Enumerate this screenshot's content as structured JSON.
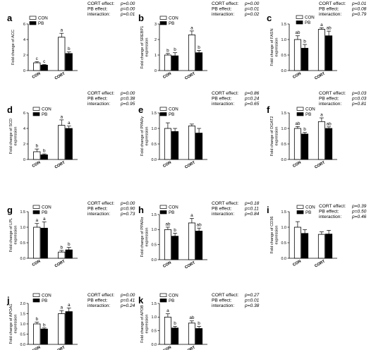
{
  "legend": {
    "con_label": "CON",
    "pb_label": "PB",
    "colors": {
      "con": "#ffffff",
      "pb": "#000000"
    }
  },
  "chart_data": [
    {
      "id": "a",
      "type": "bar",
      "ylabel": "Fold change of ACC",
      "ylim": [
        0,
        6
      ],
      "yticks": [
        0,
        2,
        4,
        6
      ],
      "categories": [
        "CON",
        "CORT"
      ],
      "series": [
        {
          "name": "CON",
          "values": [
            1.0,
            4.3
          ],
          "errors": [
            0.15,
            0.5
          ],
          "letters": [
            "c",
            "a"
          ]
        },
        {
          "name": "PB",
          "values": [
            0.7,
            2.2
          ],
          "errors": [
            0.08,
            0.2
          ],
          "letters": [
            "c",
            "b"
          ]
        }
      ],
      "stats": [
        {
          "label": "CORT effect:",
          "value": "p=0.00"
        },
        {
          "label": "PB effect:",
          "value": "p=0.00"
        },
        {
          "label": "interaction:",
          "value": "p=0.01"
        }
      ]
    },
    {
      "id": "b",
      "type": "bar",
      "ylabel": "Fold change of SREBP1 expression",
      "ylim": [
        0,
        3
      ],
      "yticks": [
        0,
        1,
        2,
        3
      ],
      "categories": [
        "CON",
        "CORT"
      ],
      "series": [
        {
          "name": "CON",
          "values": [
            1.0,
            2.3
          ],
          "errors": [
            0.1,
            0.25
          ],
          "letters": [
            "b",
            "a"
          ]
        },
        {
          "name": "PB",
          "values": [
            0.95,
            1.15
          ],
          "errors": [
            0.2,
            0.15
          ],
          "letters": [
            "b",
            "b"
          ]
        }
      ],
      "stats": [
        {
          "label": "CORT effect:",
          "value": "p=0.00"
        },
        {
          "label": "PB effect:",
          "value": "p=0.01"
        },
        {
          "label": "interaction:",
          "value": "p=0.02"
        }
      ]
    },
    {
      "id": "c",
      "type": "bar",
      "ylabel": "Fold change of FASN expression",
      "ylim": [
        0,
        1.5
      ],
      "yticks": [
        0.0,
        0.5,
        1.0,
        1.5
      ],
      "categories": [
        "CON",
        "CORT"
      ],
      "series": [
        {
          "name": "CON",
          "values": [
            1.0,
            1.33
          ],
          "errors": [
            0.12,
            0.05
          ],
          "letters": [
            "ab",
            "a"
          ]
        },
        {
          "name": "PB",
          "values": [
            0.72,
            1.12
          ],
          "errors": [
            0.12,
            0.15
          ],
          "letters": [
            "b",
            "ab"
          ]
        }
      ],
      "stats": [
        {
          "label": "CORT effect:",
          "value": "p=0.01"
        },
        {
          "label": "PB effect:",
          "value": "p=0.08"
        },
        {
          "label": "interaction:",
          "value": "p=0.79"
        }
      ]
    },
    {
      "id": "d",
      "type": "bar",
      "ylabel": "Fold change of SCD expression",
      "ylim": [
        0,
        6
      ],
      "yticks": [
        0,
        2,
        4,
        6
      ],
      "categories": [
        "CON",
        "CORT"
      ],
      "series": [
        {
          "name": "CON",
          "values": [
            1.0,
            4.4
          ],
          "errors": [
            0.35,
            0.7
          ],
          "letters": [
            "b",
            "a"
          ]
        },
        {
          "name": "PB",
          "values": [
            0.6,
            4.0
          ],
          "errors": [
            0.12,
            0.3
          ],
          "letters": [
            "b",
            "a"
          ]
        }
      ],
      "stats": [
        {
          "label": "CORT effect:",
          "value": "p=0.00"
        },
        {
          "label": "PB effect:",
          "value": "p=0.38"
        },
        {
          "label": "interaction:",
          "value": "p=0.95"
        }
      ]
    },
    {
      "id": "e",
      "type": "bar",
      "ylabel": "Fold change of PPARγ expression",
      "ylim": [
        0,
        1.5
      ],
      "yticks": [
        0.0,
        0.5,
        1.0,
        1.5
      ],
      "categories": [
        "CON",
        "CORT"
      ],
      "series": [
        {
          "name": "CON",
          "values": [
            1.0,
            1.08
          ],
          "errors": [
            0.18,
            0.06
          ],
          "letters": [
            "",
            ""
          ]
        },
        {
          "name": "PB",
          "values": [
            0.9,
            0.85
          ],
          "errors": [
            0.1,
            0.15
          ],
          "letters": [
            "",
            ""
          ]
        }
      ],
      "stats": [
        {
          "label": "CORT effect:",
          "value": "p=0.86"
        },
        {
          "label": "PB effect:",
          "value": "p=0.24"
        },
        {
          "label": "interaction:",
          "value": "p=0.65"
        }
      ]
    },
    {
      "id": "f",
      "type": "bar",
      "ylabel": "Fold change of DGAT2 expression",
      "ylim": [
        0,
        1.5
      ],
      "yticks": [
        0.0,
        0.5,
        1.0,
        1.5
      ],
      "categories": [
        "CON",
        "CORT"
      ],
      "series": [
        {
          "name": "CON",
          "values": [
            1.0,
            1.22
          ],
          "errors": [
            0.06,
            0.12
          ],
          "letters": [
            "ab",
            "a"
          ]
        },
        {
          "name": "PB",
          "values": [
            0.82,
            1.0
          ],
          "errors": [
            0.05,
            0.05
          ],
          "letters": [
            "b",
            "ab"
          ]
        }
      ],
      "stats": [
        {
          "label": "CORT effect:",
          "value": "p=0.03"
        },
        {
          "label": "PB effect:",
          "value": "p=0.03"
        },
        {
          "label": "interaction:",
          "value": "p=0.81"
        }
      ]
    },
    {
      "id": "g",
      "type": "bar",
      "ylabel": "Fold change of LPL expression",
      "ylim": [
        0,
        1.5
      ],
      "yticks": [
        0.0,
        0.5,
        1.0,
        1.5
      ],
      "categories": [
        "CON",
        "CORT"
      ],
      "series": [
        {
          "name": "CON",
          "values": [
            1.0,
            0.2
          ],
          "errors": [
            0.12,
            0.05
          ],
          "letters": [
            "a",
            "b"
          ]
        },
        {
          "name": "PB",
          "values": [
            0.97,
            0.27
          ],
          "errors": [
            0.2,
            0.08
          ],
          "letters": [
            "a",
            "b"
          ]
        }
      ],
      "stats": [
        {
          "label": "CORT effect:",
          "value": "p=0.00"
        },
        {
          "label": "PB effect:",
          "value": "p=0.90"
        },
        {
          "label": "interaction:",
          "value": "p=0.73"
        }
      ]
    },
    {
      "id": "h",
      "type": "bar",
      "ylabel": "Fold change of PPARα expression",
      "ylim": [
        0,
        1.5
      ],
      "yticks": [
        0.0,
        0.5,
        1.0,
        1.5
      ],
      "categories": [
        "CON",
        "CORT"
      ],
      "series": [
        {
          "name": "CON",
          "values": [
            1.0,
            1.22
          ],
          "errors": [
            0.08,
            0.15
          ],
          "letters": [
            "ab",
            "a"
          ]
        },
        {
          "name": "PB",
          "values": [
            0.78,
            0.95
          ],
          "errors": [
            0.1,
            0.1
          ],
          "letters": [
            "b",
            "ab"
          ]
        }
      ],
      "stats": [
        {
          "label": "CORT effect:",
          "value": "p=0.18"
        },
        {
          "label": "PB effect:",
          "value": "p=0.11"
        },
        {
          "label": "interaction:",
          "value": "p=0.84"
        }
      ]
    },
    {
      "id": "i",
      "type": "bar",
      "ylabel": "Fold change of CD36 expression",
      "ylim": [
        0,
        1.5
      ],
      "yticks": [
        0.0,
        0.5,
        1.0,
        1.5
      ],
      "categories": [
        "CON",
        "CORT"
      ],
      "series": [
        {
          "name": "CON",
          "values": [
            1.0,
            0.77
          ],
          "errors": [
            0.18,
            0.08
          ],
          "letters": [
            "",
            ""
          ]
        },
        {
          "name": "PB",
          "values": [
            0.8,
            0.78
          ],
          "errors": [
            0.12,
            0.12
          ],
          "letters": [
            "",
            ""
          ]
        }
      ],
      "stats": [
        {
          "label": "CORT effect:",
          "value": "p=0.39"
        },
        {
          "label": "PB effect:",
          "value": "p=0.50"
        },
        {
          "label": "interaction:",
          "value": "p=0.46"
        }
      ]
    },
    {
      "id": "j",
      "type": "bar",
      "ylabel": "Fold change of APOA1 expression",
      "ylim": [
        0,
        2.0
      ],
      "yticks": [
        0.0,
        0.5,
        1.0,
        1.5,
        2.0
      ],
      "categories": [
        "CON",
        "CORT"
      ],
      "series": [
        {
          "name": "CON",
          "values": [
            1.0,
            1.5
          ],
          "errors": [
            0.08,
            0.15
          ],
          "letters": [
            "b",
            "a"
          ]
        },
        {
          "name": "PB",
          "values": [
            0.75,
            1.6
          ],
          "errors": [
            0.05,
            0.18
          ],
          "letters": [
            "b",
            "a"
          ]
        }
      ],
      "stats": [
        {
          "label": "CORT effect:",
          "value": "p=0.00"
        },
        {
          "label": "PB effect:",
          "value": "p=0.41"
        },
        {
          "label": "interaction:",
          "value": "p=0.24"
        }
      ]
    },
    {
      "id": "k",
      "type": "bar",
      "ylabel": "Fold change of APOB expression",
      "ylim": [
        0,
        1.5
      ],
      "yticks": [
        0.0,
        0.5,
        1.0,
        1.5
      ],
      "categories": [
        "CON",
        "CORT"
      ],
      "series": [
        {
          "name": "CON",
          "values": [
            1.0,
            0.78
          ],
          "errors": [
            0.12,
            0.08
          ],
          "letters": [
            "a",
            "ab"
          ]
        },
        {
          "name": "PB",
          "values": [
            0.6,
            0.58
          ],
          "errors": [
            0.06,
            0.08
          ],
          "letters": [
            "b",
            "b"
          ]
        }
      ],
      "stats": [
        {
          "label": "CORT effect:",
          "value": "p=0.27"
        },
        {
          "label": "PB effect:",
          "value": "p=0.01"
        },
        {
          "label": "interaction:",
          "value": "p=0.38"
        }
      ]
    }
  ]
}
